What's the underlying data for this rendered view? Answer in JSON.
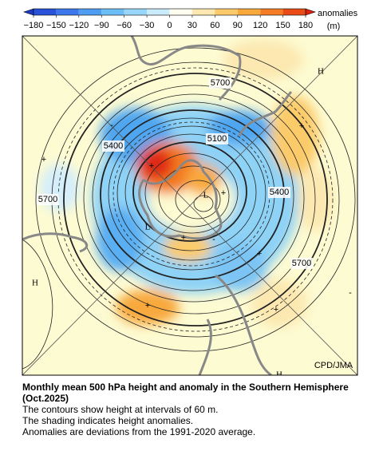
{
  "colorbar": {
    "ticks": [
      {
        "value": -180,
        "label": "−180"
      },
      {
        "value": -150,
        "label": "−150"
      },
      {
        "value": -120,
        "label": "−120"
      },
      {
        "value": -90,
        "label": "−90"
      },
      {
        "value": -60,
        "label": "−60"
      },
      {
        "value": -30,
        "label": "−30"
      },
      0,
      30,
      60,
      90,
      120,
      150,
      180
    ],
    "colors": [
      "#2a52d8",
      "#3c78ec",
      "#4f9df3",
      "#6bbef6",
      "#97d6f8",
      "#c9ebfa",
      "#fffdf0",
      "#fce8b0",
      "#fbcb6a",
      "#f8a93c",
      "#f37c24",
      "#e94b16"
    ],
    "low_color": "#1b3cc8",
    "high_color": "#e02010",
    "unit_label": "anomalies",
    "unit": "(m)"
  },
  "map": {
    "labels": [
      "5700",
      "5400",
      "5100",
      "5400",
      "5700",
      "5700",
      "H",
      "H",
      "H",
      "L",
      "L",
      "+",
      "+",
      "+",
      "+",
      "+",
      "+",
      "+",
      "+",
      "-",
      "-",
      "-"
    ],
    "credit": "CPD/JMA"
  },
  "caption": {
    "title": "Monthly mean 500 hPa height and anomaly in the Southern Hemisphere (Oct.2025)",
    "lines": [
      "The contours show height at intervals of 60 m.",
      "The shading indicates height anomalies.",
      "Anomalies are deviations from the 1991-2020 average."
    ]
  }
}
